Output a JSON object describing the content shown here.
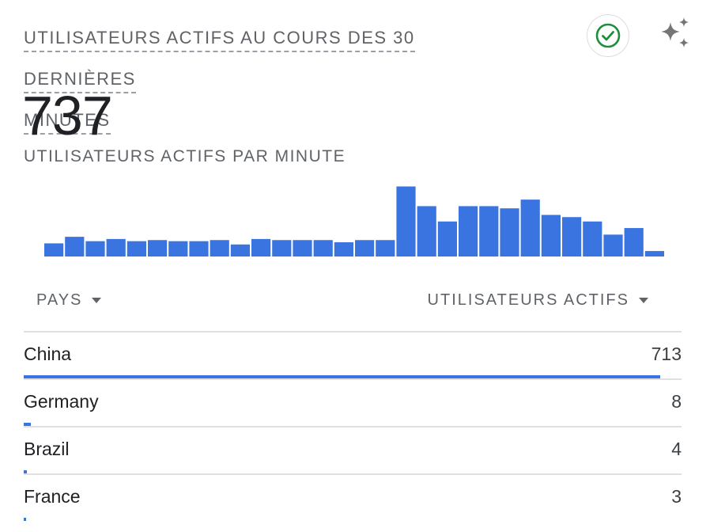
{
  "card": {
    "title": "UTILISATEURS ACTIFS AU COURS DES 30 DERNIÈRES MINUTES",
    "title_line1": "UTILISATEURS ACTIFS AU COURS DES 30 DERNIÈRES",
    "title_line2": "MINUTES",
    "total_users": "737",
    "subtitle": "UTILISATEURS ACTIFS PAR MINUTE",
    "status_icon": "check-circle-icon",
    "ai_icon": "sparkle-icon"
  },
  "colors": {
    "accent": "#3a74e0",
    "status_green": "#1e8e3e",
    "text_primary": "#202124",
    "text_secondary": "#5f6368"
  },
  "chart_data": {
    "type": "bar",
    "title": "",
    "xlabel": "",
    "ylabel": "",
    "values": [
      6,
      9,
      7,
      8,
      7,
      7.5,
      7,
      7,
      7.5,
      5.5,
      8,
      7.5,
      7.5,
      7.5,
      6.5,
      7.5,
      7.5,
      32,
      23,
      16,
      23,
      23,
      22,
      26,
      19,
      18,
      16,
      10,
      13,
      2.5
    ],
    "ylim": [
      0,
      34
    ],
    "grid": false,
    "legend": "none"
  },
  "table": {
    "col_country": "PAYS",
    "col_users": "UTILISATEURS ACTIFS",
    "rows": [
      {
        "country": "China",
        "users": "713",
        "share": 0.967
      },
      {
        "country": "Germany",
        "users": "8",
        "share": 0.011
      },
      {
        "country": "Brazil",
        "users": "4",
        "share": 0.005
      },
      {
        "country": "France",
        "users": "3",
        "share": 0.004
      }
    ]
  }
}
